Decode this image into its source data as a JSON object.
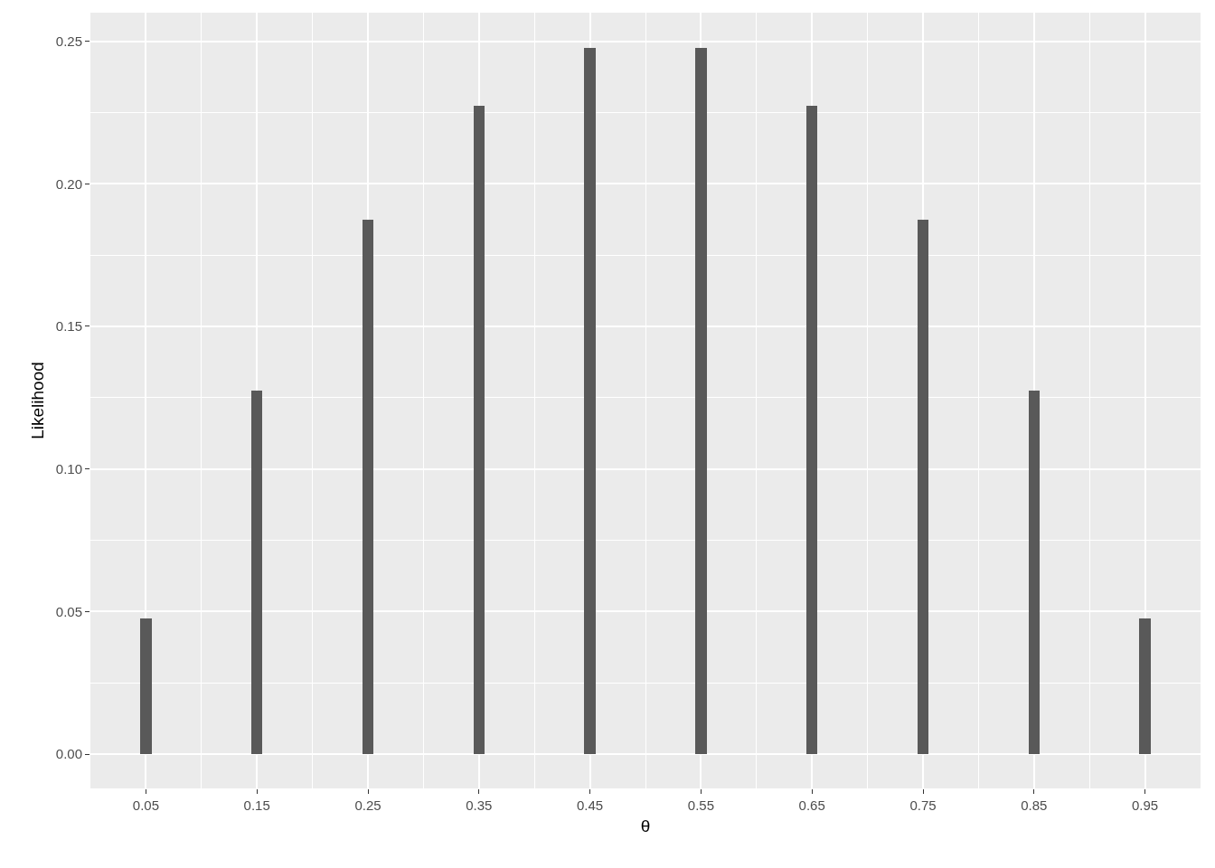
{
  "chart_data": {
    "type": "bar",
    "xlabel": "θ",
    "ylabel": "Likelihood",
    "x": [
      0.05,
      0.15,
      0.25,
      0.35,
      0.45,
      0.55,
      0.65,
      0.75,
      0.85,
      0.95
    ],
    "series": [
      {
        "color": "#595959",
        "values": [
          0.0475,
          0.1275,
          0.1875,
          0.2275,
          0.2475,
          0.2475,
          0.2275,
          0.1875,
          0.1275,
          0.0475
        ]
      }
    ],
    "xlim": [
      0,
      1
    ],
    "xticks": [
      0.05,
      0.15,
      0.25,
      0.35,
      0.45,
      0.55,
      0.65,
      0.75,
      0.85,
      0.95
    ],
    "ylim": [
      -0.012,
      0.26
    ],
    "yticks": [
      {
        "value": 0,
        "label": "0.00"
      },
      {
        "value": 0.05,
        "label": "0.05"
      },
      {
        "value": 0.1,
        "label": "0.10"
      },
      {
        "value": 0.15,
        "label": "0.15"
      },
      {
        "value": 0.2,
        "label": "0.20"
      },
      {
        "value": 0.25,
        "label": "0.25"
      }
    ],
    "grid": true
  }
}
